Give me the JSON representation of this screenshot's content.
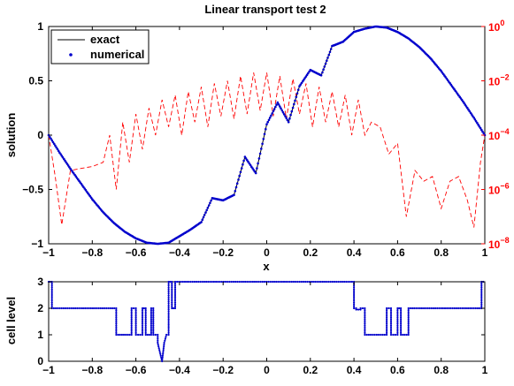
{
  "chart_data": [
    {
      "type": "line",
      "title": "Linear transport test 2",
      "xlabel": "x",
      "ylabel": "solution",
      "xlim": [
        -1,
        1
      ],
      "ylim": [
        -1,
        1
      ],
      "xticks": [
        "−1",
        "−0.8",
        "−0.6",
        "−0.4",
        "−0.2",
        "0",
        "0.2",
        "0.4",
        "0.6",
        "0.8",
        "1"
      ],
      "yticks": [
        "−1",
        "−0.5",
        "0",
        "0.5",
        "1"
      ],
      "grid": false,
      "legend_position": "top-left",
      "series": [
        {
          "name": "exact",
          "color": "#000000",
          "style": "solid",
          "x": [
            -1,
            -0.95,
            -0.9,
            -0.85,
            -0.8,
            -0.75,
            -0.7,
            -0.65,
            -0.6,
            -0.55,
            -0.5,
            -0.45,
            -0.4,
            -0.35,
            -0.3,
            -0.25,
            -0.2,
            -0.15,
            -0.1,
            -0.05,
            0,
            0.05,
            0.1,
            0.15,
            0.2,
            0.25,
            0.3,
            0.35,
            0.4,
            0.45,
            0.5,
            0.55,
            0.6,
            0.65,
            0.7,
            0.75,
            0.8,
            0.85,
            0.9,
            0.95,
            1
          ],
          "y": [
            0,
            -0.16,
            -0.31,
            -0.45,
            -0.59,
            -0.71,
            -0.81,
            -0.89,
            -0.95,
            -0.99,
            -1,
            -0.99,
            -0.93,
            -0.87,
            -0.8,
            -0.58,
            -0.6,
            -0.55,
            -0.2,
            -0.35,
            0.1,
            0.3,
            0.12,
            0.45,
            0.6,
            0.55,
            0.82,
            0.86,
            0.95,
            0.98,
            1,
            0.99,
            0.95,
            0.89,
            0.81,
            0.71,
            0.59,
            0.45,
            0.31,
            0.16,
            0
          ]
        },
        {
          "name": "numerical",
          "color": "#0000cc",
          "style": "dots",
          "x": [
            -1,
            -0.95,
            -0.9,
            -0.85,
            -0.8,
            -0.75,
            -0.7,
            -0.65,
            -0.6,
            -0.55,
            -0.5,
            -0.45,
            -0.4,
            -0.35,
            -0.3,
            -0.25,
            -0.2,
            -0.15,
            -0.1,
            -0.05,
            0,
            0.05,
            0.1,
            0.15,
            0.2,
            0.25,
            0.3,
            0.35,
            0.4,
            0.45,
            0.5,
            0.55,
            0.6,
            0.65,
            0.7,
            0.75,
            0.8,
            0.85,
            0.9,
            0.95,
            1
          ],
          "y": [
            0,
            -0.16,
            -0.31,
            -0.45,
            -0.59,
            -0.71,
            -0.81,
            -0.89,
            -0.95,
            -0.99,
            -1,
            -0.99,
            -0.93,
            -0.87,
            -0.8,
            -0.58,
            -0.6,
            -0.55,
            -0.2,
            -0.35,
            0.1,
            0.3,
            0.12,
            0.45,
            0.6,
            0.55,
            0.82,
            0.86,
            0.95,
            0.98,
            1,
            0.99,
            0.95,
            0.89,
            0.81,
            0.71,
            0.59,
            0.45,
            0.31,
            0.16,
            0
          ]
        },
        {
          "name": "",
          "color": "#ff0000",
          "style": "dashed",
          "axis": "right",
          "y_scale": "log",
          "ylim": [
            1e-08,
            1
          ],
          "x": [
            -1,
            -0.97,
            -0.94,
            -0.9,
            -0.85,
            -0.8,
            -0.75,
            -0.72,
            -0.69,
            -0.66,
            -0.63,
            -0.6,
            -0.57,
            -0.54,
            -0.51,
            -0.48,
            -0.45,
            -0.42,
            -0.39,
            -0.36,
            -0.33,
            -0.3,
            -0.27,
            -0.24,
            -0.21,
            -0.18,
            -0.15,
            -0.12,
            -0.09,
            -0.06,
            -0.03,
            0,
            0.03,
            0.06,
            0.09,
            0.12,
            0.15,
            0.18,
            0.21,
            0.24,
            0.27,
            0.3,
            0.33,
            0.36,
            0.39,
            0.42,
            0.45,
            0.48,
            0.52,
            0.56,
            0.6,
            0.64,
            0.68,
            0.72,
            0.76,
            0.8,
            0.84,
            0.88,
            0.92,
            0.95,
            0.98,
            1
          ],
          "y": [
            0.0001,
            3e-06,
            5e-08,
            5e-06,
            6e-06,
            7e-06,
            1e-05,
            0.0001,
            1e-06,
            0.0003,
            1e-05,
            0.0006,
            3e-05,
            0.001,
            0.0001,
            0.002,
            0.0002,
            0.003,
            0.0001,
            0.004,
            0.0003,
            0.006,
            0.0002,
            0.008,
            0.0005,
            0.01,
            0.0004,
            0.015,
            0.0006,
            0.02,
            0.0008,
            0.02,
            0.0005,
            0.015,
            0.0004,
            0.012,
            0.0006,
            0.008,
            0.0002,
            0.006,
            0.0003,
            0.004,
            0.0002,
            0.003,
            0.0001,
            0.002,
            0.0001,
            0.0003,
            0.0002,
            2e-05,
            5e-05,
            1e-07,
            5e-06,
            2e-06,
            3e-06,
            2e-07,
            2e-06,
            3e-06,
            4e-07,
            4e-08,
            1e-05,
            0.0001
          ]
        }
      ],
      "right_axis": {
        "color": "#ff0000",
        "scale": "log",
        "ylim": [
          1e-08,
          1
        ],
        "ticks": [
          {
            "base": "10",
            "exp": "0",
            "value": 1
          },
          {
            "base": "10",
            "exp": "−2",
            "value": 0.01
          },
          {
            "base": "10",
            "exp": "−4",
            "value": 0.0001
          },
          {
            "base": "10",
            "exp": "−6",
            "value": 1e-06
          },
          {
            "base": "10",
            "exp": "−8",
            "value": 1e-08
          }
        ]
      }
    },
    {
      "type": "line",
      "title": "",
      "xlabel": "",
      "ylabel": "cell level",
      "xlim": [
        -1,
        1
      ],
      "ylim": [
        0,
        3
      ],
      "xticks": [
        "−1",
        "−0.8",
        "−0.6",
        "−0.4",
        "−0.2",
        "0",
        "0.2",
        "0.4",
        "0.6",
        "0.8",
        "1"
      ],
      "yticks": [
        "0",
        "1",
        "2",
        "3"
      ],
      "grid": false,
      "series": [
        {
          "name": "",
          "color": "#0000cc",
          "style": "solid-with-dots",
          "x": [
            -1,
            -0.985,
            -0.985,
            -0.69,
            -0.69,
            -0.62,
            -0.62,
            -0.6,
            -0.6,
            -0.57,
            -0.57,
            -0.555,
            -0.555,
            -0.53,
            -0.53,
            -0.52,
            -0.52,
            -0.5,
            -0.5,
            -0.48,
            -0.47,
            -0.46,
            -0.45,
            -0.45,
            -0.435,
            -0.435,
            -0.42,
            -0.42,
            0.4,
            0.4,
            0.41,
            0.41,
            0.43,
            0.43,
            0.45,
            0.45,
            0.55,
            0.55,
            0.57,
            0.57,
            0.6,
            0.6,
            0.615,
            0.615,
            0.65,
            0.65,
            0.985,
            0.985,
            1
          ],
          "y": [
            3,
            3,
            2,
            2,
            1,
            1,
            2,
            2,
            1,
            1,
            2,
            2,
            1,
            1,
            2,
            2,
            1,
            1,
            0.7,
            0,
            0.7,
            1,
            1,
            3,
            3,
            2,
            2,
            3,
            3,
            2,
            2,
            1.95,
            1.95,
            2,
            2,
            1,
            1,
            2,
            2,
            1,
            1,
            2,
            2,
            1,
            1,
            2,
            2,
            3,
            3
          ]
        }
      ]
    }
  ]
}
